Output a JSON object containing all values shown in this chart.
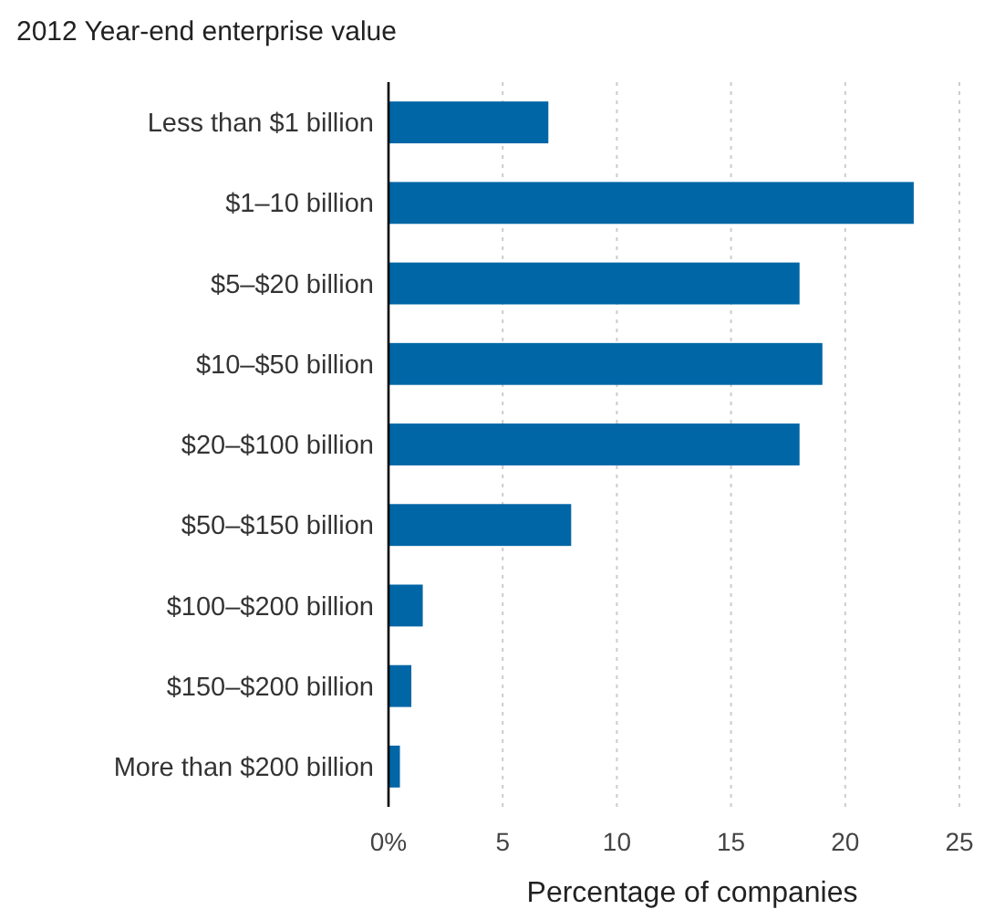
{
  "chart_data": {
    "type": "bar",
    "orientation": "horizontal",
    "title": "2012 Year-end enterprise value",
    "xlabel": "Percentage of companies",
    "categories": [
      "Less than $1 billion",
      "$1–10 billion",
      "$5–$20 billion",
      "$10–$50 billion",
      "$20–$100 billion",
      "$50–$150 billion",
      "$100–$200 billion",
      "$150–$200 billion",
      "More than $200 billion"
    ],
    "values": [
      7,
      23,
      18,
      19,
      18,
      8,
      1.5,
      1,
      0.5
    ],
    "color": "#0066a6",
    "xlim": [
      0,
      25
    ],
    "xticks": [
      {
        "value": 0,
        "label": "0%"
      },
      5,
      10,
      15,
      20,
      25
    ],
    "grid": "x"
  }
}
